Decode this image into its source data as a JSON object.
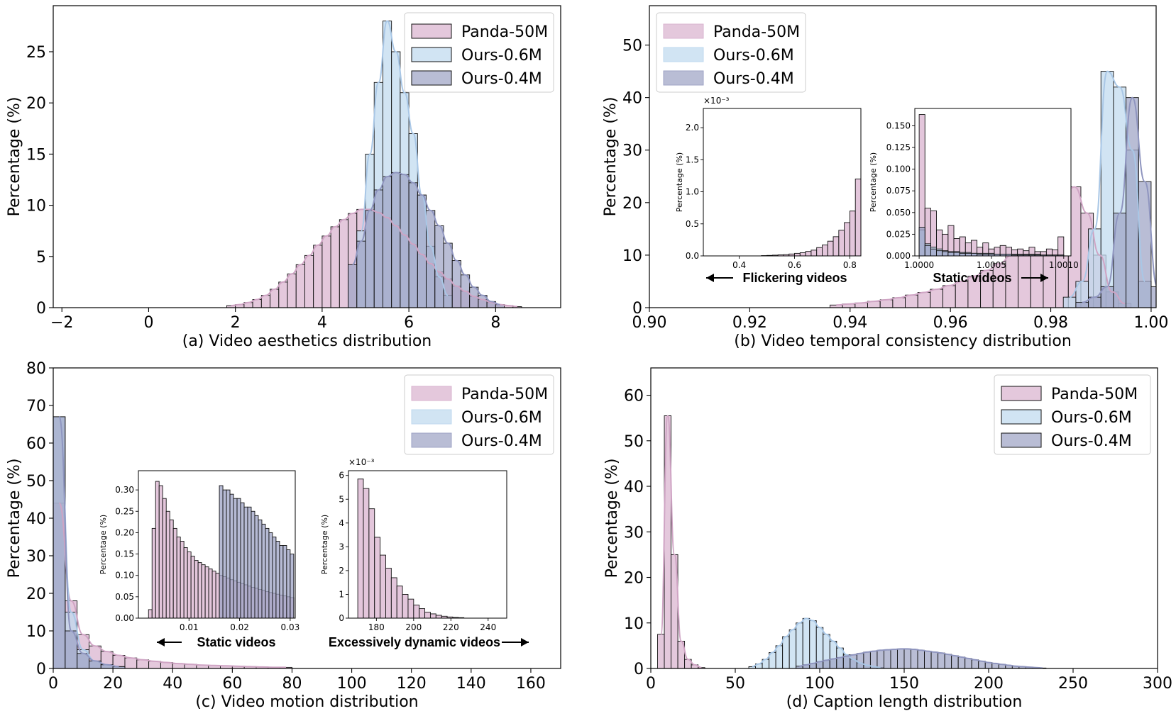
{
  "colors": {
    "panda": "#d9b3cf",
    "ours06": "#bfd9ef",
    "ours04": "#9ea3c5",
    "panda_line": "#cfa4c4",
    "ours06_line": "#a9c7e6",
    "ours04_line": "#8f95bf"
  },
  "legend_entries": [
    "Panda-50M",
    "Ours-0.6M",
    "Ours-0.4M"
  ],
  "chart_data": [
    {
      "type": "bar",
      "title": "(a) Video aesthetics distribution",
      "xlabel": "(a) Video aesthetics distribution",
      "ylabel": "Percentage (%)",
      "xlim": [
        -2.2,
        9.5
      ],
      "ylim": [
        0,
        29.5
      ],
      "xticks": [
        -2,
        0,
        2,
        4,
        6,
        8
      ],
      "yticks": [
        0,
        5,
        10,
        15,
        20,
        25
      ],
      "legend": "top-right",
      "grid": false,
      "series": [
        {
          "name": "Panda-50M",
          "x0": 1.8,
          "bin": 0.2,
          "values": [
            0.2,
            0.3,
            0.5,
            0.8,
            1.2,
            1.8,
            2.5,
            3.3,
            4.2,
            5.1,
            6.1,
            7.0,
            7.9,
            8.6,
            9.2,
            9.6,
            9.6,
            9.3,
            8.8,
            8.0,
            7.1,
            6.2,
            5.2,
            4.3,
            3.5,
            2.8,
            2.1,
            1.6,
            1.1,
            0.8,
            0.5,
            0.3,
            0.2,
            0.1
          ]
        },
        {
          "name": "Ours-0.6M",
          "x0": 4.8,
          "bin": 0.2,
          "values": [
            7.5,
            15.0,
            22.0,
            28.0,
            25.0,
            21.0,
            17.0,
            11.0,
            6.0,
            3.0,
            1.2
          ]
        },
        {
          "name": "Ours-0.4M",
          "x0": 4.6,
          "bin": 0.2,
          "values": [
            4.2,
            6.5,
            9.5,
            11.5,
            12.8,
            13.2,
            13.0,
            12.2,
            11.0,
            9.5,
            8.0,
            6.3,
            4.6,
            3.2,
            2.0,
            1.2,
            0.6,
            0.3
          ]
        }
      ]
    },
    {
      "type": "bar",
      "title": "(b) Video temporal consistency distribution",
      "xlabel": "(b) Video temporal consistency distribution",
      "ylabel": "Percentage (%)",
      "xlim": [
        0.9,
        1.001
      ],
      "ylim": [
        0,
        57.5
      ],
      "xticks": [
        0.9,
        0.92,
        0.94,
        0.96,
        0.98,
        1.0
      ],
      "yticks": [
        0,
        10,
        20,
        30,
        40,
        50
      ],
      "legend": "top-left",
      "grid": false,
      "series": [
        {
          "name": "Panda-50M",
          "x0": 0.936,
          "bin": 0.0025,
          "values": [
            0.5,
            0.7,
            0.9,
            1.2,
            1.5,
            1.9,
            2.4,
            2.9,
            3.5,
            4.2,
            5.0,
            6.0,
            7.1,
            8.4,
            10.0,
            12.0,
            14.5,
            17.5,
            21.0,
            23.0,
            18.0,
            10.0,
            3.0,
            0.8
          ]
        },
        {
          "name": "Ours-0.6M",
          "x0": 0.9825,
          "bin": 0.0025,
          "values": [
            2.0,
            5.0,
            15.0,
            45.0,
            42.0,
            30.0,
            5.0
          ]
        },
        {
          "name": "Ours-0.4M",
          "x0": 0.985,
          "bin": 0.0025,
          "values": [
            1.0,
            2.0,
            4.0,
            18.0,
            40.0,
            24.0,
            4.0
          ]
        }
      ]
    },
    {
      "type": "bar",
      "title": "(c) Video motion distribution",
      "xlabel": "(c) Video motion distribution",
      "ylabel": "Percentage (%)",
      "xlim": [
        0,
        170
      ],
      "ylim": [
        0,
        80
      ],
      "xticks": [
        0,
        20,
        40,
        60,
        80,
        100,
        120,
        140,
        160
      ],
      "yticks": [
        0,
        10,
        20,
        30,
        40,
        50,
        60,
        70,
        80
      ],
      "legend": "top-right",
      "grid": false,
      "series": [
        {
          "name": "Panda-50M",
          "x0": 0,
          "bin": 4,
          "values": [
            44.0,
            18.0,
            9.0,
            6.0,
            4.5,
            3.5,
            2.8,
            2.3,
            1.9,
            1.6,
            1.3,
            1.1,
            0.9,
            0.8,
            0.7,
            0.6,
            0.5,
            0.4,
            0.3,
            0.3
          ]
        },
        {
          "name": "Ours-0.6M",
          "x0": 0,
          "bin": 4,
          "values": [
            67.0,
            15.0,
            5.0,
            2.0,
            1.0,
            0.5
          ]
        },
        {
          "name": "Ours-0.4M",
          "x0": 0,
          "bin": 4,
          "values": [
            67.0,
            10.0,
            4.0,
            2.0,
            1.0,
            0.5
          ]
        }
      ]
    },
    {
      "type": "bar",
      "title": "(d) Caption length distribution",
      "xlabel": "(d) Caption length distribution",
      "ylabel": "Percentage (%)",
      "xlim": [
        0,
        300
      ],
      "ylim": [
        0,
        66
      ],
      "xticks": [
        0,
        50,
        100,
        150,
        200,
        250,
        300
      ],
      "yticks": [
        0,
        10,
        20,
        30,
        40,
        50,
        60
      ],
      "legend": "top-right",
      "grid": false,
      "series": [
        {
          "name": "Panda-50M",
          "x0": 4,
          "bin": 4,
          "values": [
            7.5,
            55.5,
            25.0,
            6.0,
            2.0,
            0.8,
            0.2
          ]
        },
        {
          "name": "Ours-0.6M",
          "x0": 58,
          "bin": 4,
          "values": [
            0.4,
            1.0,
            2.0,
            3.5,
            5.0,
            7.0,
            8.5,
            10.0,
            11.0,
            10.5,
            9.0,
            7.5,
            6.0,
            4.5,
            3.0,
            2.0,
            1.2,
            0.7,
            0.4,
            0.2
          ]
        },
        {
          "name": "Ours-0.4M",
          "x0": 86,
          "bin": 4,
          "values": [
            0.5,
            0.8,
            1.1,
            1.5,
            1.8,
            2.1,
            2.4,
            2.7,
            3.0,
            3.3,
            3.6,
            3.8,
            4.0,
            4.1,
            4.2,
            4.3,
            4.3,
            4.2,
            4.0,
            3.8,
            3.6,
            3.4,
            3.1,
            2.8,
            2.5,
            2.2,
            1.9,
            1.6,
            1.3,
            1.1,
            0.9,
            0.7,
            0.5,
            0.4,
            0.3,
            0.2,
            0.1
          ]
        }
      ]
    }
  ],
  "insets": [
    {
      "panel": 1,
      "ylabel": "Percentage (%)",
      "exponent": "×10⁻³",
      "xlim": [
        0.27,
        0.84
      ],
      "ylim": [
        0,
        2.3
      ],
      "xticks": [
        "0.4",
        "0.6",
        "0.8"
      ],
      "xtick_values": [
        0.4,
        0.6,
        0.8
      ],
      "yticks": [
        "0.0",
        "0.5",
        "1.0",
        "1.5",
        "2.0"
      ],
      "ytick_values": [
        0,
        0.5,
        1.0,
        1.5,
        2.0
      ],
      "annotation": "Flickering videos",
      "arrow": "left",
      "series": [
        {
          "name": "Panda-50M",
          "x0": 0.48,
          "bin": 0.02,
          "values": [
            0.005,
            0.008,
            0.012,
            0.016,
            0.02,
            0.03,
            0.04,
            0.05,
            0.07,
            0.09,
            0.13,
            0.17,
            0.23,
            0.3,
            0.4,
            0.52,
            0.7,
            1.2,
            2.2
          ]
        }
      ]
    },
    {
      "panel": 1,
      "ylabel": "Percentage (%)",
      "xlim": [
        0.99997,
        1.00105
      ],
      "ylim": [
        0,
        0.17
      ],
      "xticks": [
        "1.0000",
        "1.0005",
        "1.0010"
      ],
      "xtick_values": [
        1.0,
        1.0005,
        1.001
      ],
      "yticks": [
        "0.000",
        "0.025",
        "0.050",
        "0.075",
        "0.100",
        "0.125",
        "0.150"
      ],
      "ytick_values": [
        0,
        0.025,
        0.05,
        0.075,
        0.1,
        0.125,
        0.15
      ],
      "annotation": "Static videos",
      "arrow": "right",
      "series": [
        {
          "name": "Panda-50M",
          "x0": 1.0,
          "bin": 4e-05,
          "values": [
            0.163,
            0.055,
            0.052,
            0.03,
            0.025,
            0.035,
            0.02,
            0.022,
            0.015,
            0.018,
            0.01,
            0.015,
            0.008,
            0.01,
            0.012,
            0.01,
            0.007,
            0.008,
            0.006,
            0.01,
            0.005,
            0.005,
            0.008,
            0.007,
            0.022
          ]
        },
        {
          "name": "Ours-0.6M",
          "x0": 1.0,
          "bin": 4e-05,
          "values": [
            0.03,
            0.014,
            0.01,
            0.008,
            0.006,
            0.005,
            0.005,
            0.004,
            0.004,
            0.003,
            0.003,
            0.003,
            0.003,
            0.002,
            0.002,
            0.002,
            0.002,
            0.002,
            0.002,
            0.002,
            0.002,
            0.001,
            0.001,
            0.001,
            0.001
          ]
        },
        {
          "name": "Ours-0.4M",
          "x0": 1.0,
          "bin": 4e-05,
          "values": [
            0.033,
            0.012,
            0.008,
            0.006,
            0.005,
            0.004,
            0.004,
            0.003,
            0.003,
            0.003,
            0.002,
            0.002,
            0.002,
            0.002,
            0.002,
            0.002,
            0.001,
            0.001,
            0.001,
            0.001,
            0.001,
            0.001,
            0.001,
            0.001,
            0.001
          ]
        }
      ]
    },
    {
      "panel": 2,
      "ylabel": "Percentage (%)",
      "xlim": [
        0.0,
        0.031
      ],
      "ylim": [
        0,
        0.345
      ],
      "xticks": [
        "0.01",
        "0.02",
        "0.03"
      ],
      "xtick_values": [
        0.01,
        0.02,
        0.03
      ],
      "yticks": [
        "0.00",
        "0.05",
        "0.10",
        "0.15",
        "0.20",
        "0.25",
        "0.30"
      ],
      "ytick_values": [
        0,
        0.05,
        0.1,
        0.15,
        0.2,
        0.25,
        0.3
      ],
      "annotation": "Static videos",
      "arrow": "left",
      "series": [
        {
          "name": "Panda-50M",
          "x0": 0.002,
          "bin": 0.0007,
          "values": [
            0.02,
            0.21,
            0.32,
            0.31,
            0.28,
            0.25,
            0.23,
            0.21,
            0.19,
            0.18,
            0.165,
            0.155,
            0.145,
            0.135,
            0.13,
            0.125,
            0.12,
            0.115,
            0.11,
            0.105,
            0.1,
            0.097,
            0.094,
            0.09,
            0.087,
            0.084,
            0.081,
            0.078,
            0.075,
            0.072,
            0.07,
            0.067,
            0.065,
            0.062,
            0.06,
            0.058,
            0.056,
            0.054,
            0.052,
            0.05,
            0.048
          ]
        },
        {
          "name": "Ours-0.4M",
          "x0": 0.016,
          "bin": 0.0007,
          "values": [
            0.31,
            0.3,
            0.3,
            0.29,
            0.28,
            0.28,
            0.27,
            0.26,
            0.26,
            0.25,
            0.24,
            0.23,
            0.22,
            0.21,
            0.2,
            0.19,
            0.18,
            0.17,
            0.17,
            0.16,
            0.15
          ]
        }
      ]
    },
    {
      "panel": 2,
      "ylabel": "Percentage (%)",
      "exponent": "×10⁻³",
      "xlim": [
        165,
        250
      ],
      "ylim": [
        0,
        6.2
      ],
      "xticks": [
        "180",
        "200",
        "220",
        "240"
      ],
      "xtick_values": [
        180,
        200,
        220,
        240
      ],
      "yticks": [
        "0",
        "1",
        "2",
        "3",
        "4",
        "5",
        "6"
      ],
      "ytick_values": [
        0,
        1,
        2,
        3,
        4,
        5,
        6
      ],
      "annotation": "Excessively dynamic videos",
      "arrow": "right",
      "series": [
        {
          "name": "Panda-50M",
          "x0": 170,
          "bin": 3,
          "values": [
            5.85,
            5.45,
            4.6,
            3.4,
            2.65,
            2.1,
            1.7,
            1.35,
            1.0,
            0.8,
            0.55,
            0.4,
            0.25,
            0.18,
            0.12,
            0.08,
            0.05,
            0.03,
            0.02
          ]
        }
      ]
    }
  ]
}
